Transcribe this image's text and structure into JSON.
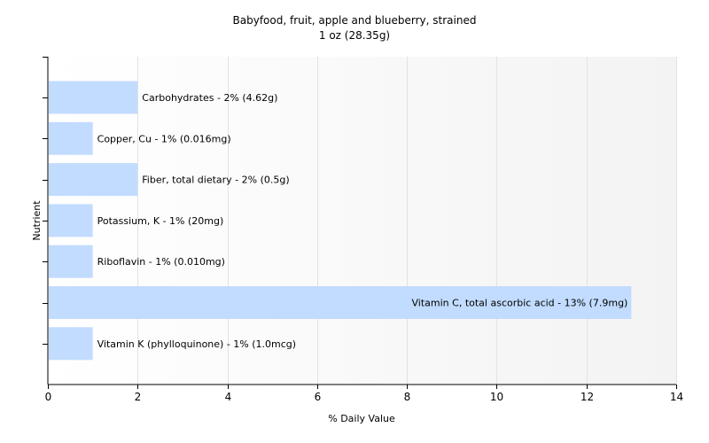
{
  "chart_data": {
    "type": "bar",
    "orientation": "horizontal",
    "title": "Babyfood, fruit, apple and blueberry, strained",
    "subtitle": "1 oz (28.35g)",
    "xlabel": "% Daily Value",
    "ylabel": "Nutrient",
    "xlim": [
      0,
      14
    ],
    "xticks": [
      0,
      2,
      4,
      6,
      8,
      10,
      12,
      14
    ],
    "grid": "vertical",
    "bar_color": "#c2dcff",
    "categories": [
      "Carbohydrates",
      "Copper, Cu",
      "Fiber, total dietary",
      "Potassium, K",
      "Riboflavin",
      "Vitamin C, total ascorbic acid",
      "Vitamin K (phylloquinone)"
    ],
    "values": [
      2,
      1,
      2,
      1,
      1,
      13,
      1
    ],
    "labels": [
      "Carbohydrates - 2% (4.62g)",
      "Copper, Cu - 1% (0.016mg)",
      "Fiber, total dietary - 2% (0.5g)",
      "Potassium, K - 1% (20mg)",
      "Riboflavin - 1% (0.010mg)",
      "Vitamin C, total ascorbic acid - 13% (7.9mg)",
      "Vitamin K (phylloquinone) - 1% (1.0mcg)"
    ]
  }
}
